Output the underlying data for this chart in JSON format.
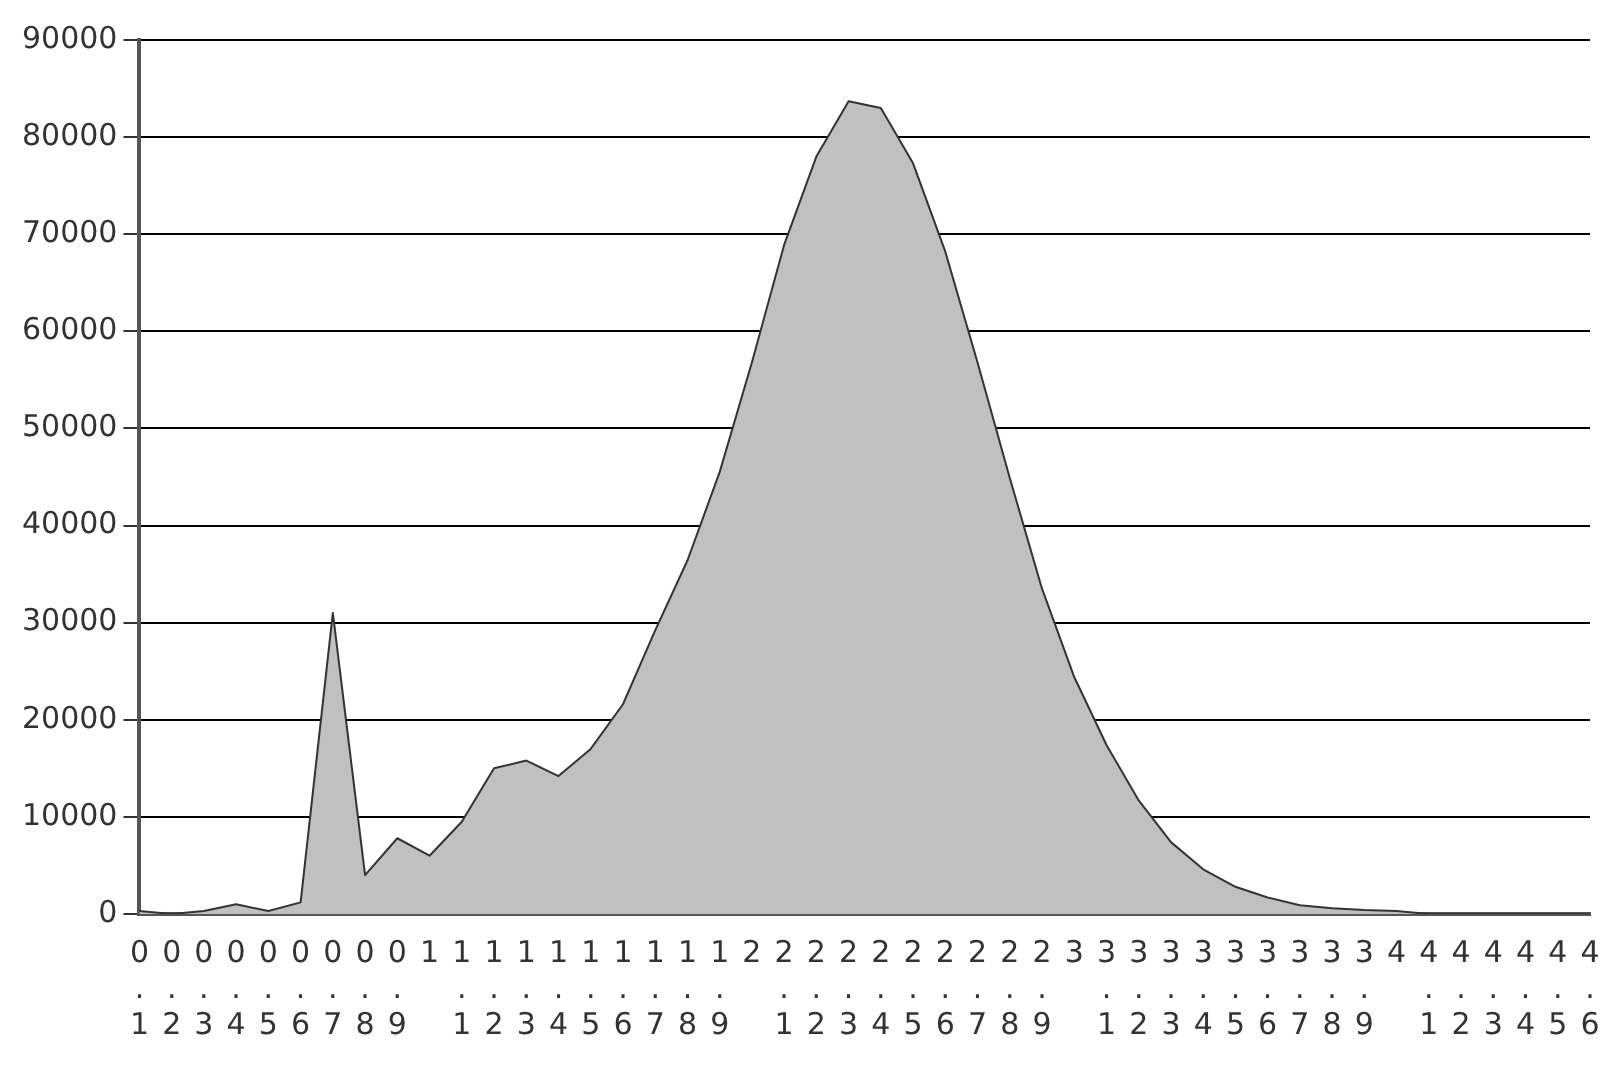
{
  "chart_data": {
    "type": "area",
    "categories": [
      "0.1",
      "0.2",
      "0.3",
      "0.4",
      "0.5",
      "0.6",
      "0.7",
      "0.8",
      "0.9",
      "1",
      "1.1",
      "1.2",
      "1.3",
      "1.4",
      "1.5",
      "1.6",
      "1.7",
      "1.8",
      "1.9",
      "2",
      "2.1",
      "2.2",
      "2.3",
      "2.4",
      "2.5",
      "2.6",
      "2.7",
      "2.8",
      "2.9",
      "3",
      "3.1",
      "3.2",
      "3.3",
      "3.4",
      "3.5",
      "3.6",
      "3.7",
      "3.8",
      "3.9",
      "4",
      "4.1",
      "4.2",
      "4.3",
      "4.4",
      "4.5",
      "4.6"
    ],
    "series": [
      {
        "color": "#c0c0c0",
        "values": [
          300,
          0,
          300,
          1000,
          300,
          1200,
          31000,
          4000,
          7800,
          6000,
          9500,
          15000,
          15800,
          14200,
          17000,
          21600,
          29200,
          36400,
          45500,
          56800,
          68900,
          78000,
          83700,
          83000,
          77300,
          68200,
          56800,
          44900,
          33500,
          24400,
          17400,
          11700,
          7400,
          4600,
          2800,
          1700,
          900,
          600,
          400,
          300,
          0,
          0,
          0,
          0,
          0,
          0
        ]
      }
    ],
    "ylim": [
      0,
      90000
    ],
    "yticks": [
      0,
      10000,
      20000,
      30000,
      40000,
      50000,
      60000,
      70000,
      80000,
      90000
    ],
    "grid": "y",
    "legend": false,
    "marker": "none",
    "line_style": "solid"
  }
}
